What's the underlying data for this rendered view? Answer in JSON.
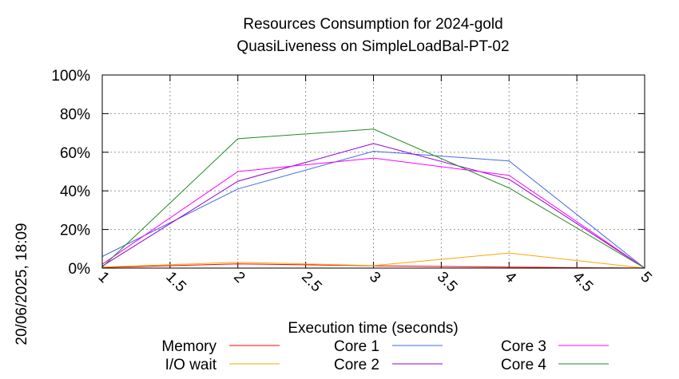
{
  "chart_data": {
    "type": "line",
    "title": "Resources Consumption for 2024-gold",
    "subtitle": "QuasiLiveness on SimpleLoadBal-PT-02",
    "xlabel": "Execution time (seconds)",
    "ylabel": "",
    "side_label": "20/06/2025, 18:09",
    "xlim": [
      1,
      5
    ],
    "ylim": [
      0,
      100
    ],
    "x_ticks": [
      "1",
      "1.5",
      "2",
      "2.5",
      "3",
      "3.5",
      "4",
      "4.5",
      "5"
    ],
    "y_ticks": [
      "0%",
      "20%",
      "40%",
      "60%",
      "80%",
      "100%"
    ],
    "grid": true,
    "legend_position": "bottom",
    "x": [
      1,
      2,
      3,
      4,
      5
    ],
    "series": [
      {
        "name": "Memory",
        "color": "#ff0000",
        "values": [
          0.3,
          2.2,
          1.2,
          0.5,
          0
        ]
      },
      {
        "name": "I/O wait",
        "color": "#ffa500",
        "values": [
          0.5,
          3.0,
          1.3,
          7.8,
          0
        ]
      },
      {
        "name": "Core 1",
        "color": "#4169e1",
        "values": [
          6.0,
          41.0,
          60.5,
          55.5,
          0
        ]
      },
      {
        "name": "Core 2",
        "color": "#9400d3",
        "values": [
          1.0,
          45.0,
          64.5,
          46.0,
          0
        ]
      },
      {
        "name": "Core 3",
        "color": "#ff00ff",
        "values": [
          2.0,
          50.0,
          57.0,
          48.0,
          0
        ]
      },
      {
        "name": "Core 4",
        "color": "#228b22",
        "values": [
          0.5,
          67.0,
          72.0,
          41.5,
          0
        ]
      }
    ]
  }
}
